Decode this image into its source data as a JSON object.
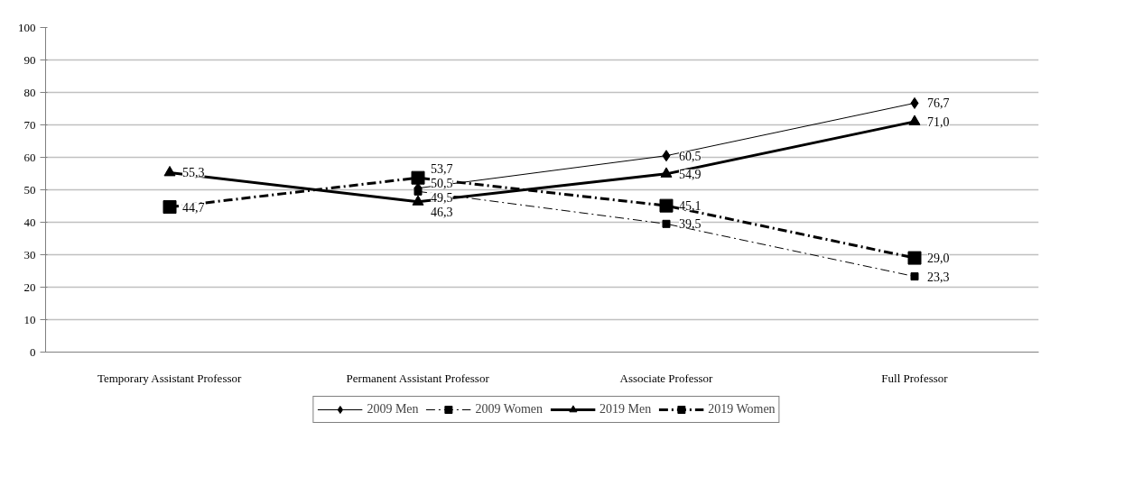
{
  "chart_data": {
    "type": "line",
    "categories": [
      "Temporary Assistant Professor",
      "Permanent Assistant Professor",
      "Associate Professor",
      "Full Professor"
    ],
    "ylim": [
      0,
      100
    ],
    "yticks": [
      0,
      10,
      20,
      30,
      40,
      50,
      60,
      70,
      80,
      90,
      100
    ],
    "grid": "y",
    "legend": "bottom",
    "series": [
      {
        "name": "2009 Men",
        "color": "#000000",
        "marker": "diamond",
        "line_style": "solid",
        "values": [
          null,
          50.5,
          60.5,
          76.7
        ],
        "value_labels": [
          null,
          "50,5",
          "60,5",
          "76,7"
        ]
      },
      {
        "name": "2009 Women",
        "color": "#000000",
        "marker": "square",
        "line_style": "dashed",
        "values": [
          null,
          49.5,
          39.5,
          23.3
        ],
        "value_labels": [
          null,
          "49,5",
          "39,5",
          "23,3"
        ]
      },
      {
        "name": "2019 Men",
        "color": "#000000",
        "marker": "triangle",
        "line_style": "solid",
        "values": [
          55.3,
          46.3,
          54.9,
          71.0
        ],
        "value_labels": [
          "55,3",
          "46,3",
          "54,9",
          "71,0"
        ]
      },
      {
        "name": "2019 Women",
        "color": "#000000",
        "marker": "square",
        "line_style": "dashed",
        "values": [
          44.7,
          53.7,
          45.1,
          29.0
        ],
        "value_labels": [
          "44,7",
          "53,7",
          "45,1",
          "29,0"
        ]
      }
    ]
  }
}
